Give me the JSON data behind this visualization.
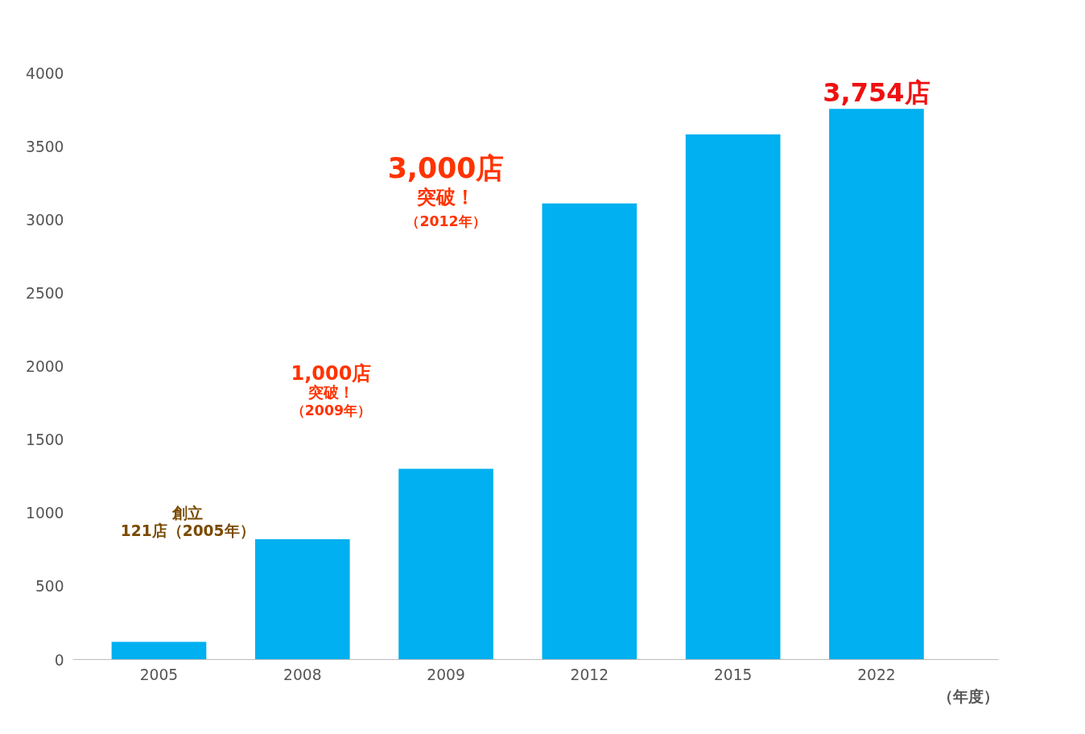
{
  "chart_data": {
    "type": "bar",
    "categories": [
      "2005",
      "2008",
      "2009",
      "2012",
      "2015",
      "2022"
    ],
    "values": [
      121,
      820,
      1300,
      3110,
      3580,
      3754
    ],
    "color": "#00b0f0",
    "value_labels": [
      null,
      null,
      null,
      null,
      null,
      "3,754店"
    ],
    "xlabel": "（年度）",
    "ylim": [
      0,
      4000
    ],
    "yticks": [
      0,
      500,
      1000,
      1500,
      2000,
      2500,
      3000,
      3500,
      4000
    ],
    "annotations": [
      "創立",
      "121店（2005年）",
      "1,000店",
      "突破！",
      "（2009年）",
      "3,000店",
      "突破！",
      "（2012年）"
    ]
  }
}
